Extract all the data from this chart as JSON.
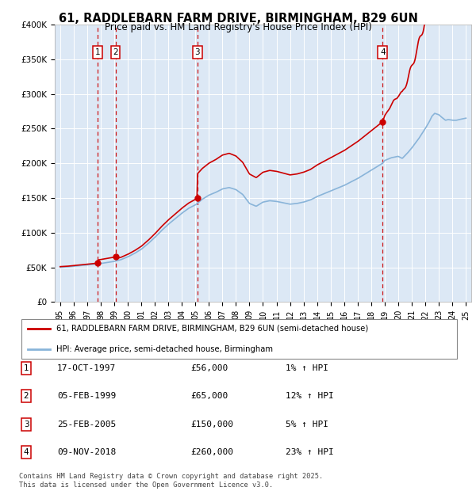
{
  "title": "61, RADDLEBARN FARM DRIVE, BIRMINGHAM, B29 6UN",
  "subtitle": "Price paid vs. HM Land Registry's House Price Index (HPI)",
  "sales": [
    {
      "label": "1",
      "date": "1997-10-17",
      "price": 56000,
      "t": 1997.79
    },
    {
      "label": "2",
      "date": "1999-02-05",
      "price": 65000,
      "t": 1999.09
    },
    {
      "label": "3",
      "date": "2005-02-25",
      "price": 150000,
      "t": 2005.14
    },
    {
      "label": "4",
      "date": "2018-11-09",
      "price": 260000,
      "t": 2018.85
    }
  ],
  "legend_line1": "61, RADDLEBARN FARM DRIVE, BIRMINGHAM, B29 6UN (semi-detached house)",
  "legend_line2": "HPI: Average price, semi-detached house, Birmingham",
  "table": [
    {
      "num": "1",
      "date": "17-OCT-1997",
      "price": "£56,000",
      "hpi": "1% ↑ HPI"
    },
    {
      "num": "2",
      "date": "05-FEB-1999",
      "price": "£65,000",
      "hpi": "12% ↑ HPI"
    },
    {
      "num": "3",
      "date": "25-FEB-2005",
      "price": "£150,000",
      "hpi": "5% ↑ HPI"
    },
    {
      "num": "4",
      "date": "09-NOV-2018",
      "price": "£260,000",
      "hpi": "23% ↑ HPI"
    }
  ],
  "footer": "Contains HM Land Registry data © Crown copyright and database right 2025.\nThis data is licensed under the Open Government Licence v3.0.",
  "ylim": [
    0,
    400000
  ],
  "yticks": [
    0,
    50000,
    100000,
    150000,
    200000,
    250000,
    300000,
    350000,
    400000
  ],
  "ytick_labels": [
    "£0",
    "£50K",
    "£100K",
    "£150K",
    "£200K",
    "£250K",
    "£300K",
    "£350K",
    "£400K"
  ],
  "red_color": "#cc0000",
  "blue_color": "#89b4d9",
  "dashed_color": "#cc0000",
  "plot_bg": "#dce8f5",
  "fig_bg": "#ffffff",
  "grid_color": "#ffffff"
}
